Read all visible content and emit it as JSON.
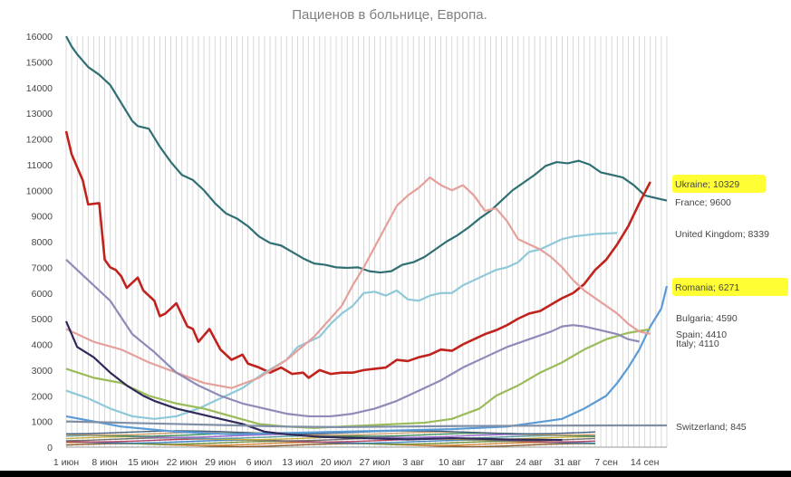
{
  "chart_data": {
    "type": "line",
    "title": "Пациенов в больнице, Европа.",
    "xlabel": "",
    "ylabel": "",
    "ylim": [
      0,
      16000
    ],
    "yticks": [
      0,
      1000,
      2000,
      3000,
      4000,
      5000,
      6000,
      7000,
      8000,
      9000,
      10000,
      11000,
      12000,
      13000,
      14000,
      15000,
      16000
    ],
    "x_start": "2021-06-01",
    "x_end": "2021-09-17",
    "x_tick_labels": [
      "1 июн",
      "8 июн",
      "15 июн",
      "22 июн",
      "29 июн",
      "6 июл",
      "13 июл",
      "20 июл",
      "27 июл",
      "3 авг",
      "10 авг",
      "17 авг",
      "24 авг",
      "31 авг",
      "7 сен",
      "14 сен"
    ],
    "grid": "vertical daily lines",
    "series": [
      {
        "name": "France",
        "label": "France; 9600",
        "color": "#2f6f73",
        "points": [
          [
            0,
            16000
          ],
          [
            1,
            15600
          ],
          [
            2,
            15300
          ],
          [
            4,
            14800
          ],
          [
            6,
            14500
          ],
          [
            8,
            14100
          ],
          [
            10,
            13400
          ],
          [
            12,
            12700
          ],
          [
            13,
            12500
          ],
          [
            15,
            12400
          ],
          [
            17,
            11700
          ],
          [
            19,
            11100
          ],
          [
            21,
            10600
          ],
          [
            23,
            10400
          ],
          [
            25,
            10000
          ],
          [
            27,
            9500
          ],
          [
            29,
            9100
          ],
          [
            31,
            8900
          ],
          [
            33,
            8600
          ],
          [
            35,
            8200
          ],
          [
            37,
            7950
          ],
          [
            39,
            7850
          ],
          [
            41,
            7600
          ],
          [
            43,
            7350
          ],
          [
            45,
            7150
          ],
          [
            47,
            7100
          ],
          [
            49,
            7000
          ],
          [
            51,
            6980
          ],
          [
            53,
            7000
          ],
          [
            55,
            6850
          ],
          [
            57,
            6800
          ],
          [
            59,
            6850
          ],
          [
            61,
            7100
          ],
          [
            63,
            7200
          ],
          [
            65,
            7400
          ],
          [
            67,
            7700
          ],
          [
            69,
            8000
          ],
          [
            71,
            8250
          ],
          [
            73,
            8550
          ],
          [
            75,
            8900
          ],
          [
            77,
            9200
          ],
          [
            79,
            9600
          ],
          [
            81,
            10000
          ],
          [
            83,
            10300
          ],
          [
            85,
            10600
          ],
          [
            87,
            10950
          ],
          [
            89,
            11100
          ],
          [
            91,
            11050
          ],
          [
            93,
            11150
          ],
          [
            95,
            11000
          ],
          [
            97,
            10700
          ],
          [
            99,
            10600
          ],
          [
            101,
            10500
          ],
          [
            103,
            10200
          ],
          [
            105,
            9800
          ],
          [
            107,
            9700
          ],
          [
            109,
            9600
          ]
        ]
      },
      {
        "name": "Ukraine",
        "label": "Ukraine; 10329",
        "color": "#c0231d",
        "points": [
          [
            0,
            12300
          ],
          [
            1,
            11400
          ],
          [
            2,
            10900
          ],
          [
            3,
            10400
          ],
          [
            4,
            9450
          ],
          [
            6,
            9500
          ],
          [
            7,
            7300
          ],
          [
            8,
            7000
          ],
          [
            9,
            6900
          ],
          [
            10,
            6650
          ],
          [
            11,
            6200
          ],
          [
            13,
            6600
          ],
          [
            14,
            6100
          ],
          [
            16,
            5700
          ],
          [
            17,
            5100
          ],
          [
            18,
            5200
          ],
          [
            20,
            5600
          ],
          [
            22,
            4700
          ],
          [
            23,
            4600
          ],
          [
            24,
            4100
          ],
          [
            26,
            4600
          ],
          [
            28,
            3800
          ],
          [
            30,
            3400
          ],
          [
            32,
            3600
          ],
          [
            33,
            3250
          ],
          [
            35,
            3100
          ],
          [
            37,
            2900
          ],
          [
            39,
            3100
          ],
          [
            41,
            2850
          ],
          [
            43,
            2900
          ],
          [
            44,
            2700
          ],
          [
            46,
            3000
          ],
          [
            48,
            2850
          ],
          [
            50,
            2900
          ],
          [
            52,
            2900
          ],
          [
            54,
            3000
          ],
          [
            56,
            3050
          ],
          [
            58,
            3100
          ],
          [
            60,
            3400
          ],
          [
            62,
            3350
          ],
          [
            64,
            3500
          ],
          [
            66,
            3600
          ],
          [
            68,
            3800
          ],
          [
            70,
            3750
          ],
          [
            72,
            4000
          ],
          [
            74,
            4200
          ],
          [
            76,
            4400
          ],
          [
            78,
            4550
          ],
          [
            80,
            4750
          ],
          [
            82,
            5000
          ],
          [
            84,
            5200
          ],
          [
            86,
            5300
          ],
          [
            88,
            5550
          ],
          [
            90,
            5800
          ],
          [
            92,
            6000
          ],
          [
            94,
            6350
          ],
          [
            96,
            6900
          ],
          [
            98,
            7300
          ],
          [
            100,
            7900
          ],
          [
            102,
            8600
          ],
          [
            104,
            9500
          ],
          [
            106,
            10329
          ]
        ]
      },
      {
        "name": "United Kingdom",
        "label": "United Kingdom; 8339",
        "color": "#8fc9d9",
        "points": [
          [
            0,
            2200
          ],
          [
            4,
            1900
          ],
          [
            8,
            1500
          ],
          [
            12,
            1200
          ],
          [
            16,
            1100
          ],
          [
            20,
            1200
          ],
          [
            24,
            1500
          ],
          [
            28,
            1900
          ],
          [
            32,
            2300
          ],
          [
            36,
            2900
          ],
          [
            40,
            3400
          ],
          [
            42,
            3900
          ],
          [
            44,
            4100
          ],
          [
            46,
            4300
          ],
          [
            48,
            4800
          ],
          [
            50,
            5200
          ],
          [
            52,
            5500
          ],
          [
            54,
            6000
          ],
          [
            56,
            6050
          ],
          [
            58,
            5900
          ],
          [
            60,
            6100
          ],
          [
            62,
            5750
          ],
          [
            64,
            5700
          ],
          [
            66,
            5900
          ],
          [
            68,
            6000
          ],
          [
            70,
            6000
          ],
          [
            72,
            6300
          ],
          [
            74,
            6500
          ],
          [
            76,
            6700
          ],
          [
            78,
            6900
          ],
          [
            80,
            7000
          ],
          [
            82,
            7200
          ],
          [
            84,
            7600
          ],
          [
            86,
            7700
          ],
          [
            88,
            7900
          ],
          [
            90,
            8100
          ],
          [
            92,
            8200
          ],
          [
            94,
            8250
          ],
          [
            96,
            8300
          ],
          [
            98,
            8320
          ],
          [
            100,
            8339
          ]
        ]
      },
      {
        "name": "Romania",
        "label": "Romania; 6271",
        "color": "#5b9bd5",
        "points": [
          [
            0,
            1200
          ],
          [
            10,
            800
          ],
          [
            20,
            600
          ],
          [
            30,
            500
          ],
          [
            40,
            550
          ],
          [
            50,
            600
          ],
          [
            60,
            650
          ],
          [
            70,
            700
          ],
          [
            80,
            800
          ],
          [
            90,
            1100
          ],
          [
            94,
            1500
          ],
          [
            98,
            2000
          ],
          [
            100,
            2500
          ],
          [
            102,
            3100
          ],
          [
            104,
            3800
          ],
          [
            106,
            4700
          ],
          [
            108,
            5400
          ],
          [
            109,
            6271
          ]
        ]
      },
      {
        "name": "Bulgaria",
        "label": "Bulgaria; 4590",
        "color": "#9bbb59",
        "points": [
          [
            0,
            3050
          ],
          [
            5,
            2700
          ],
          [
            10,
            2500
          ],
          [
            15,
            2000
          ],
          [
            20,
            1700
          ],
          [
            25,
            1500
          ],
          [
            30,
            1200
          ],
          [
            35,
            900
          ],
          [
            40,
            800
          ],
          [
            45,
            750
          ],
          [
            50,
            800
          ],
          [
            55,
            850
          ],
          [
            60,
            900
          ],
          [
            65,
            950
          ],
          [
            70,
            1100
          ],
          [
            75,
            1500
          ],
          [
            78,
            2000
          ],
          [
            82,
            2400
          ],
          [
            86,
            2900
          ],
          [
            90,
            3300
          ],
          [
            94,
            3800
          ],
          [
            98,
            4200
          ],
          [
            102,
            4450
          ],
          [
            106,
            4590
          ]
        ]
      },
      {
        "name": "Spain",
        "label": "Spain; 4410",
        "color": "#e6a09b",
        "points": [
          [
            0,
            4600
          ],
          [
            5,
            4100
          ],
          [
            10,
            3800
          ],
          [
            15,
            3300
          ],
          [
            20,
            2900
          ],
          [
            25,
            2500
          ],
          [
            30,
            2300
          ],
          [
            35,
            2700
          ],
          [
            40,
            3400
          ],
          [
            45,
            4300
          ],
          [
            50,
            5500
          ],
          [
            52,
            6300
          ],
          [
            54,
            7000
          ],
          [
            56,
            7800
          ],
          [
            58,
            8600
          ],
          [
            60,
            9400
          ],
          [
            62,
            9800
          ],
          [
            64,
            10100
          ],
          [
            66,
            10500
          ],
          [
            68,
            10200
          ],
          [
            70,
            10000
          ],
          [
            72,
            10200
          ],
          [
            74,
            9800
          ],
          [
            76,
            9200
          ],
          [
            78,
            9300
          ],
          [
            80,
            8800
          ],
          [
            82,
            8100
          ],
          [
            84,
            7900
          ],
          [
            86,
            7700
          ],
          [
            88,
            7400
          ],
          [
            90,
            7000
          ],
          [
            92,
            6500
          ],
          [
            94,
            6100
          ],
          [
            96,
            5800
          ],
          [
            98,
            5500
          ],
          [
            100,
            5200
          ],
          [
            102,
            4800
          ],
          [
            104,
            4500
          ],
          [
            106,
            4410
          ]
        ]
      },
      {
        "name": "Italy",
        "label": "Italy; 4110",
        "color": "#8e8bb8",
        "points": [
          [
            0,
            7300
          ],
          [
            4,
            6500
          ],
          [
            8,
            5700
          ],
          [
            12,
            4400
          ],
          [
            16,
            3700
          ],
          [
            20,
            2900
          ],
          [
            24,
            2400
          ],
          [
            28,
            2000
          ],
          [
            32,
            1700
          ],
          [
            36,
            1500
          ],
          [
            40,
            1300
          ],
          [
            44,
            1200
          ],
          [
            48,
            1200
          ],
          [
            52,
            1300
          ],
          [
            56,
            1500
          ],
          [
            60,
            1800
          ],
          [
            64,
            2200
          ],
          [
            68,
            2600
          ],
          [
            72,
            3100
          ],
          [
            76,
            3500
          ],
          [
            80,
            3900
          ],
          [
            84,
            4200
          ],
          [
            88,
            4500
          ],
          [
            90,
            4700
          ],
          [
            92,
            4750
          ],
          [
            94,
            4700
          ],
          [
            96,
            4600
          ],
          [
            98,
            4500
          ],
          [
            100,
            4400
          ],
          [
            102,
            4200
          ],
          [
            104,
            4110
          ]
        ]
      },
      {
        "name": "",
        "label": "",
        "color": "#2e2a5a",
        "points": [
          [
            0,
            4900
          ],
          [
            2,
            3900
          ],
          [
            5,
            3500
          ],
          [
            8,
            2900
          ],
          [
            11,
            2400
          ],
          [
            14,
            2000
          ],
          [
            16,
            1800
          ],
          [
            20,
            1500
          ],
          [
            24,
            1300
          ],
          [
            28,
            1100
          ],
          [
            32,
            900
          ],
          [
            36,
            600
          ],
          [
            40,
            500
          ],
          [
            46,
            400
          ],
          [
            54,
            350
          ],
          [
            62,
            300
          ],
          [
            70,
            350
          ],
          [
            80,
            300
          ],
          [
            90,
            280
          ]
        ]
      },
      {
        "name": "Switzerland",
        "label": "Switzerland; 845",
        "color": "#7f8fa8",
        "points": [
          [
            0,
            1000
          ],
          [
            10,
            950
          ],
          [
            20,
            900
          ],
          [
            30,
            850
          ],
          [
            40,
            800
          ],
          [
            50,
            780
          ],
          [
            60,
            800
          ],
          [
            70,
            820
          ],
          [
            80,
            830
          ],
          [
            90,
            840
          ],
          [
            100,
            845
          ],
          [
            109,
            845
          ]
        ]
      }
    ],
    "minor_series_colors": [
      "#8b5a2b",
      "#d98c3f",
      "#6a8f3a",
      "#3f7fbf",
      "#b04060",
      "#707070",
      "#c8b040",
      "#5a9b9b",
      "#a06ad0",
      "#3b8f5a",
      "#d0a070",
      "#406080"
    ]
  },
  "highlight_color": "#ffff33"
}
